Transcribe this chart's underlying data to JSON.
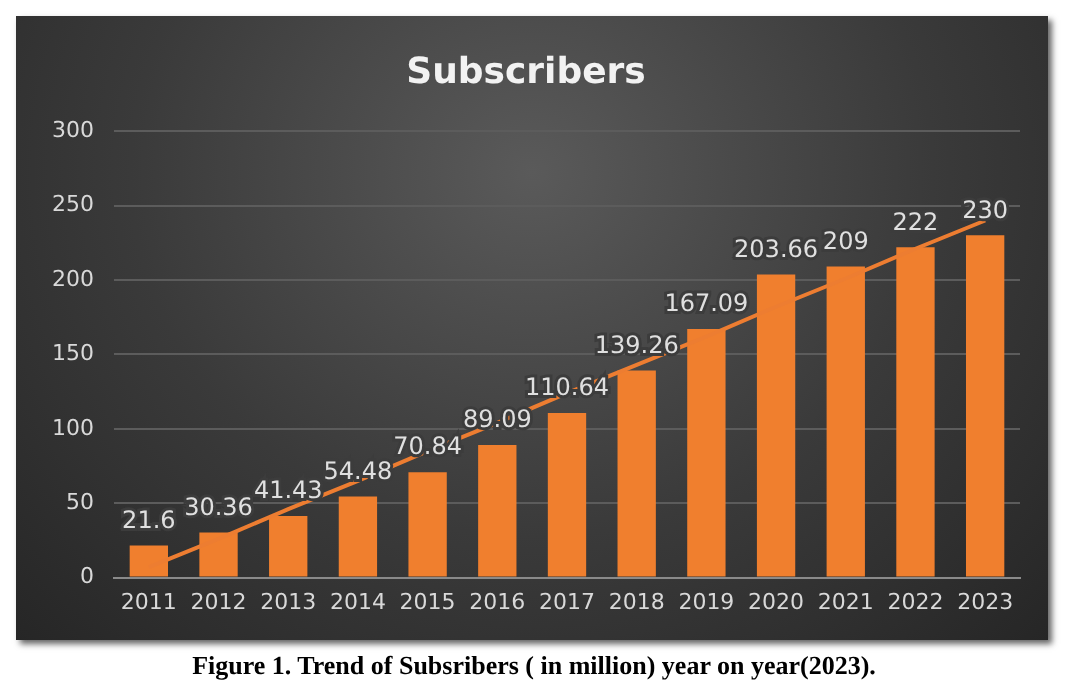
{
  "chart_data": {
    "type": "bar",
    "title": "Subscribers",
    "categories": [
      "2011",
      "2012",
      "2013",
      "2014",
      "2015",
      "2016",
      "2017",
      "2018",
      "2019",
      "2020",
      "2021",
      "2022",
      "2023"
    ],
    "series": [
      {
        "color": "#f07f2e",
        "values": [
          21.6,
          30.36,
          41.43,
          54.48,
          70.84,
          89.09,
          110.64,
          139.26,
          167.09,
          203.66,
          209,
          222,
          230
        ],
        "value_labels": [
          "21.6",
          "30.36",
          "41.43",
          "54.48",
          "70.84",
          "89.09",
          "110.64",
          "139.26",
          "167.09",
          "203.66",
          "209",
          "222",
          "230"
        ]
      },
      {
        "type": "line",
        "color": "#ed7d31",
        "values": [
          7,
          26,
          46,
          65,
          85,
          104,
          124,
          143,
          162,
          182,
          201,
          221,
          240
        ]
      }
    ],
    "ylim": [
      0,
      300
    ],
    "yticks": [
      0,
      50,
      100,
      150,
      200,
      250,
      300
    ],
    "grid": "y",
    "legend": false,
    "annotations": [
      "Figure 1. Trend of Subsribers ( in million) year on year(2023)."
    ]
  }
}
